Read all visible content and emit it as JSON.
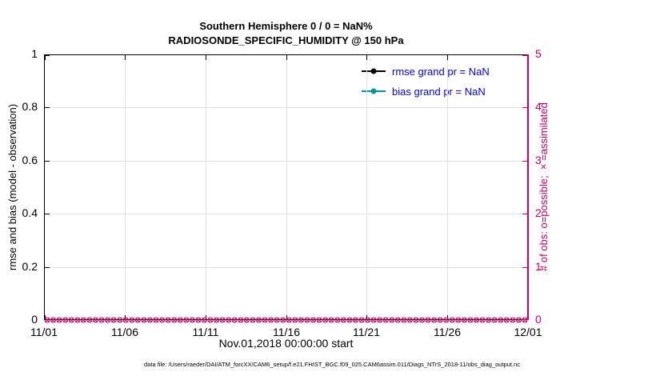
{
  "chart": {
    "title_line1": "Southern Hemisphere 0 / 0 = NaN%",
    "title_line2": "RADIOSONDE_SPECIFIC_HUMIDITY @ 150 hPa",
    "xlabel": "Nov.01,2018 00:00:00 start",
    "ylabel_left": "rmse and bias (model - observation)",
    "ylabel_right": "# of obs: o=possible; ×=assimilated",
    "caption": "data file: /Users/raeder/DAI/ATM_forcXX/CAM6_setup/f.e21.FHIST_BGC.f09_025.CAM6assim.011/Diags_NTrS_2018-11/obs_diag_output.nc",
    "legend": [
      {
        "label": "rmse grand pr = NaN",
        "color": "#000000"
      },
      {
        "label": "bias grand pr = NaN",
        "color": "#009999"
      }
    ]
  },
  "chart_data": {
    "type": "line",
    "title": "Southern Hemisphere 0 / 0 = NaN% — RADIOSONDE_SPECIFIC_HUMIDITY @ 150 hPa",
    "x_ticks": [
      "11/01",
      "11/06",
      "11/11",
      "11/16",
      "11/21",
      "11/26",
      "12/01"
    ],
    "xlabel": "Nov.01,2018 00:00:00 start",
    "ylabel_left": "rmse and bias (model - observation)",
    "y_left_ticks": [
      "0",
      "0.2",
      "0.4",
      "0.6",
      "0.8",
      "1"
    ],
    "y_left_range": [
      0,
      1
    ],
    "ylabel_right": "# of obs: o=possible; ×=assimilated",
    "y_right_ticks": [
      "0",
      "1",
      "2",
      "3",
      "4",
      "5"
    ],
    "y_right_range": [
      0,
      5
    ],
    "grid": true,
    "legend_position": "upper-right-inside",
    "series": [
      {
        "name": "rmse",
        "grand_pr": "NaN",
        "values": []
      },
      {
        "name": "bias",
        "grand_pr": "NaN",
        "values": []
      }
    ],
    "obs_possible_per_time": 0,
    "obs_assimilated_per_time": 0,
    "marker_count": 80,
    "colors": {
      "axis_right": "#CC0066",
      "rmse": "#000000",
      "bias": "#009999",
      "legend_text": "#0000FF",
      "grid": "#E2E2E2"
    }
  }
}
